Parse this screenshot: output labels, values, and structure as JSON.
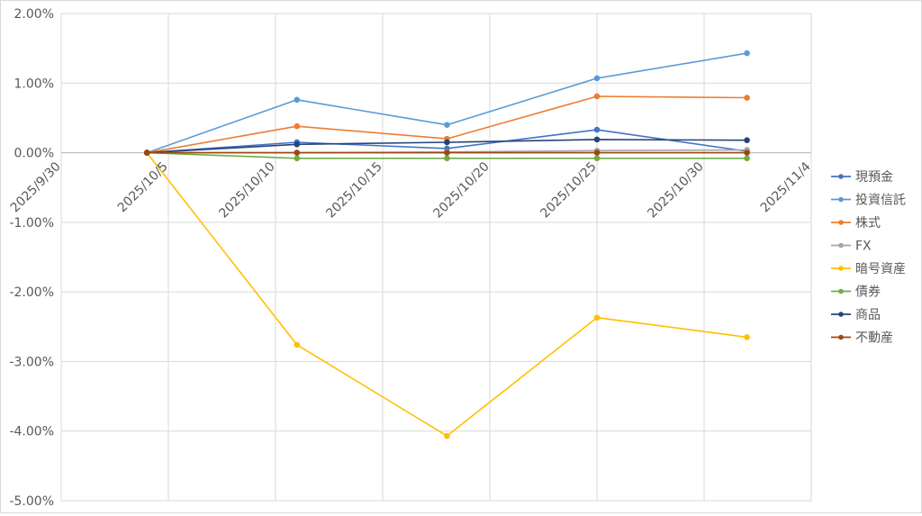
{
  "chart_data": {
    "type": "line",
    "title": "",
    "xlabel": "",
    "ylabel": "",
    "x_axis_type": "date",
    "x_tick_labels": [
      "2025/9/30",
      "2025/10/5",
      "2025/10/10",
      "2025/10/15",
      "2025/10/20",
      "2025/10/25",
      "2025/10/30",
      "2025/11/4"
    ],
    "xlim": [
      "2025/9/30",
      "2025/11/4"
    ],
    "y_tick_labels": [
      "2.00%",
      "1.00%",
      "0.00%",
      "-1.00%",
      "-2.00%",
      "-3.00%",
      "-4.00%",
      "-5.00%"
    ],
    "ylim": [
      -5.0,
      2.0
    ],
    "y_unit": "%",
    "grid": true,
    "legend_position": "right",
    "x": [
      "2025/10/4",
      "2025/10/11",
      "2025/10/18",
      "2025/10/25",
      "2025/11/1"
    ],
    "series": [
      {
        "name": "現預金",
        "color": "#4472C4",
        "values": [
          0.0,
          0.15,
          0.06,
          0.33,
          0.02
        ]
      },
      {
        "name": "投資信託",
        "color": "#5B9BD5",
        "values": [
          0.0,
          0.76,
          0.4,
          1.07,
          1.43
        ]
      },
      {
        "name": "株式",
        "color": "#ED7D31",
        "values": [
          0.0,
          0.38,
          0.2,
          0.81,
          0.79
        ]
      },
      {
        "name": "FX",
        "color": "#A5A5A5",
        "values": [
          0.0,
          0.0,
          0.01,
          0.03,
          0.04
        ]
      },
      {
        "name": "暗号資産",
        "color": "#FFC000",
        "values": [
          0.0,
          -2.76,
          -4.07,
          -2.37,
          -2.65
        ]
      },
      {
        "name": "債券",
        "color": "#70AD47",
        "values": [
          0.0,
          -0.08,
          -0.08,
          -0.08,
          -0.08
        ]
      },
      {
        "name": "商品",
        "color": "#264478",
        "values": [
          0.0,
          0.12,
          0.15,
          0.19,
          0.18
        ]
      },
      {
        "name": "不動産",
        "color": "#9E480E",
        "values": [
          0.0,
          0.0,
          0.0,
          0.0,
          0.0
        ]
      }
    ]
  }
}
